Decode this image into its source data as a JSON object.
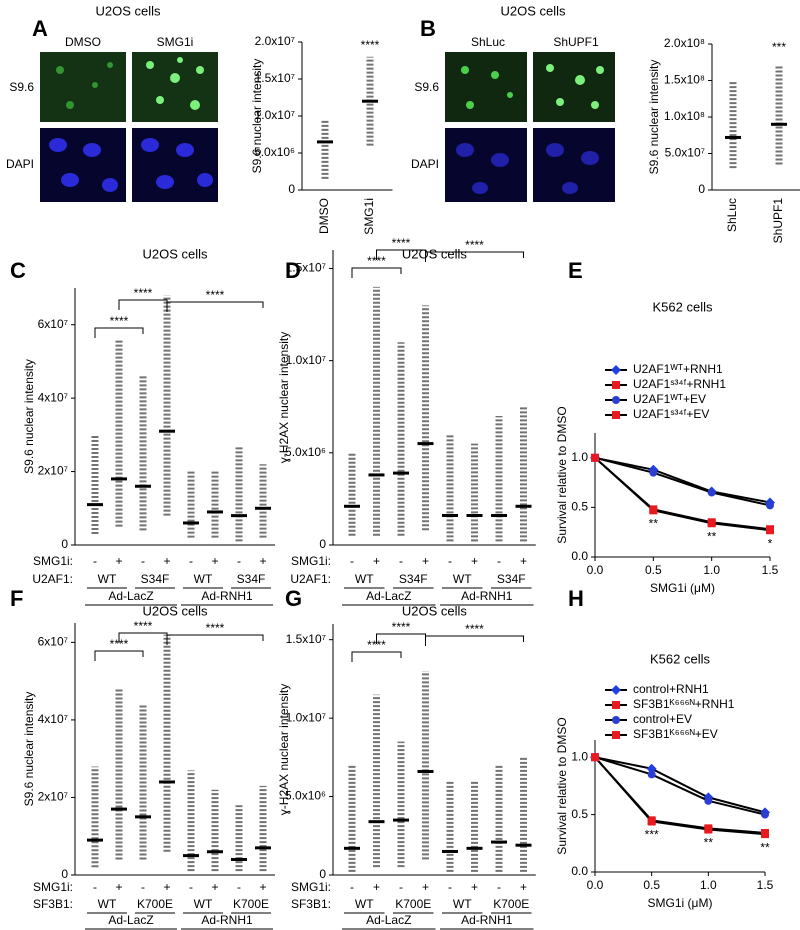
{
  "figure": {
    "panels": [
      {
        "letter": "A",
        "title": "U2OS cells",
        "conditions": [
          "DMSO",
          "SMG1i"
        ],
        "stains": [
          "S9.6",
          "DAPI"
        ]
      },
      {
        "letter": "B",
        "title": "U2OS cells",
        "conditions": [
          "ShLuc",
          "ShUPF1"
        ],
        "stains": [
          "S9.6",
          "DAPI"
        ]
      }
    ]
  },
  "chart_data": [
    {
      "type": "dot_plot",
      "ylabel": "S9.6 nuclear intensity",
      "ylim": [
        0,
        20000000
      ],
      "yticks": [
        0,
        {
          "value": 5000000,
          "label": "5.0x10⁶"
        },
        {
          "value": 10000000,
          "label": "1.0x10⁷"
        },
        {
          "value": 15000000,
          "label": "1.5x10⁷"
        },
        {
          "value": 20000000,
          "label": "2.0x10⁷"
        }
      ],
      "categories": [
        "DMSO",
        "SMG1i"
      ],
      "means": [
        6500000,
        12000000
      ],
      "mins": [
        1500000,
        6000000
      ],
      "maxs": [
        9500000,
        18000000
      ],
      "mean_color": "#e8191f",
      "significance": [
        "****"
      ]
    },
    {
      "type": "dot_plot",
      "ylabel": "S9.6 nuclear intensity",
      "ylim": [
        0,
        200000000
      ],
      "yticks": [
        0,
        {
          "value": 50000000,
          "label": "5.0x10⁷"
        },
        {
          "value": 100000000,
          "label": "1.0x10⁸"
        },
        {
          "value": 150000000,
          "label": "1.5x10⁸"
        },
        {
          "value": 200000000,
          "label": "2.0x10⁸"
        }
      ],
      "categories": [
        "ShLuc",
        "ShUPF1"
      ],
      "means": [
        72000000,
        90000000
      ],
      "mins": [
        30000000,
        35000000
      ],
      "maxs": [
        150000000,
        170000000
      ],
      "mean_color": "#e8191f",
      "significance": [
        "***"
      ]
    },
    {
      "type": "dot_plot",
      "panel": "C",
      "title": "U2OS cells",
      "ylabel": "S9.6 nuclear  intensity",
      "ylim": [
        0,
        70000000
      ],
      "yticks": [
        0,
        {
          "value": 20000000,
          "label": "2x10⁷"
        },
        {
          "value": 40000000,
          "label": "4x10⁷"
        },
        {
          "value": 60000000,
          "label": "6x10⁷"
        }
      ],
      "row_label": "SMG1i:",
      "categories": [
        "-",
        "+",
        "-",
        "+",
        "-",
        "+",
        "-",
        "+"
      ],
      "genotype_label": "U2AF1:",
      "genotypes": [
        "WT",
        "S34F",
        "WT",
        "S34F"
      ],
      "treatments": [
        "Ad-LacZ",
        "Ad-RNH1"
      ],
      "means": [
        11000000,
        18000000,
        16000000,
        31000000,
        6000000,
        9000000,
        8000000,
        10000000
      ],
      "mins": [
        3000000,
        5000000,
        4000000,
        8000000,
        2000000,
        2000000,
        1000000,
        2000000
      ],
      "maxs": [
        30000000,
        56000000,
        46000000,
        68000000,
        20000000,
        20000000,
        27000000,
        22000000
      ],
      "mean_color": "#e8191f",
      "significance": [
        "****",
        "****",
        "****"
      ]
    },
    {
      "type": "dot_plot",
      "panel": "D",
      "title": "U2OS cells",
      "ylabel": "ɣ-H2AX nuclear intensity",
      "ylim": [
        0,
        16000000
      ],
      "yticks": [
        0,
        {
          "value": 5000000,
          "label": "5.0x10⁶"
        },
        {
          "value": 10000000,
          "label": "1.0x10⁷"
        },
        {
          "value": 15000000,
          "label": "1.5x10⁷"
        }
      ],
      "row_label": "SMG1i:",
      "categories": [
        "-",
        "+",
        "-",
        "+",
        "-",
        "+",
        "-",
        "+"
      ],
      "genotype_label": "U2AF1:",
      "genotypes": [
        "WT",
        "S34F",
        "WT",
        "S34F"
      ],
      "treatments": [
        "Ad-LacZ",
        "Ad-RNH1"
      ],
      "means": [
        2100000,
        3800000,
        3900000,
        5500000,
        1600000,
        1600000,
        1600000,
        2100000
      ],
      "mins": [
        500000,
        500000,
        500000,
        800000,
        200000,
        200000,
        200000,
        200000
      ],
      "maxs": [
        5000000,
        14000000,
        11000000,
        13000000,
        6000000,
        5500000,
        7000000,
        7500000
      ],
      "mean_color": "#e8191f",
      "significance": [
        "****",
        "****",
        "****"
      ]
    },
    {
      "type": "line",
      "panel": "E",
      "title": "K562 cells",
      "ylabel": "Survival relative to DMSO",
      "xlabel": "SMG1i (μM)",
      "x": [
        0,
        0.5,
        1,
        1.5
      ],
      "xlim": [
        0,
        1.5
      ],
      "ylim": [
        0,
        1.25
      ],
      "xticks": [
        {
          "value": 0,
          "label": "0.0"
        },
        {
          "value": 0.5,
          "label": "0.5"
        },
        {
          "value": 1,
          "label": "1.0"
        },
        {
          "value": 1.5,
          "label": "1.5"
        }
      ],
      "yticks": [
        {
          "value": 0,
          "label": "0.0"
        },
        {
          "value": 0.5,
          "label": "0.5"
        },
        {
          "value": 1,
          "label": "1.0"
        }
      ],
      "series": [
        {
          "name": "U2AF1ᵂᵀ+RNH1",
          "color": "#1f3fe0",
          "marker": "diamond",
          "values": [
            1,
            0.88,
            0.66,
            0.55
          ]
        },
        {
          "name": "U2AF1ˢ³⁴ᶠ+RNH1",
          "color": "#e8191f",
          "marker": "square",
          "values": [
            1,
            0.48,
            0.35,
            0.28
          ]
        },
        {
          "name": "U2AF1ᵂᵀ+EV",
          "color": "#2a3fd0",
          "marker": "circle",
          "values": [
            1,
            0.85,
            0.65,
            0.52
          ]
        },
        {
          "name": "U2AF1ˢ³⁴ᶠ+EV",
          "color": "#e8191f",
          "marker": "square",
          "values": [
            1,
            0.47,
            0.34,
            0.27
          ]
        }
      ],
      "annotations": [
        "**",
        "**",
        "*"
      ],
      "legend": "top"
    },
    {
      "type": "dot_plot",
      "panel": "F",
      "title": "U2OS cells",
      "ylabel": "S9.6 nuclear intensity",
      "ylim": [
        0,
        65000000
      ],
      "yticks": [
        0,
        {
          "value": 20000000,
          "label": "2x10⁷"
        },
        {
          "value": 40000000,
          "label": "4x10⁷"
        },
        {
          "value": 60000000,
          "label": "6x10⁷"
        }
      ],
      "row_label": "SMG1i:",
      "categories": [
        "-",
        "+",
        "-",
        "+",
        "-",
        "+",
        "-",
        "+"
      ],
      "genotype_label": "SF3B1:",
      "genotypes": [
        "WT",
        "K700E",
        "WT",
        "K700E"
      ],
      "treatments": [
        "Ad-LacZ",
        "Ad-RNH1"
      ],
      "means": [
        9000000,
        17000000,
        15000000,
        24000000,
        5000000,
        6000000,
        4000000,
        7000000
      ],
      "mins": [
        2000000,
        4000000,
        4000000,
        6000000,
        1000000,
        1000000,
        1000000,
        1000000
      ],
      "maxs": [
        28000000,
        48000000,
        44000000,
        62000000,
        27000000,
        22000000,
        18000000,
        23000000
      ],
      "mean_color": "#e8191f",
      "significance": [
        "****",
        "****",
        "****"
      ]
    },
    {
      "type": "dot_plot",
      "panel": "G",
      "title": "U2OS cells",
      "ylabel": "ɣ-H2AX nuclear intensity",
      "ylim": [
        0,
        16000000
      ],
      "yticks": [
        0,
        {
          "value": 5000000,
          "label": "5.0x10⁶"
        },
        {
          "value": 10000000,
          "label": "1.0x10⁷"
        },
        {
          "value": 15000000,
          "label": "1.5x10⁷"
        }
      ],
      "row_label": "SMG1i:",
      "categories": [
        "-",
        "+",
        "-",
        "+",
        "-",
        "+",
        "-",
        "+"
      ],
      "genotype_label": "SF3B1:",
      "genotypes": [
        "WT",
        "K700E",
        "WT",
        "K700E"
      ],
      "treatments": [
        "Ad-LacZ",
        "Ad-RNH1"
      ],
      "means": [
        1700000,
        3400000,
        3500000,
        6600000,
        1500000,
        1700000,
        2100000,
        1900000
      ],
      "mins": [
        200000,
        500000,
        500000,
        1000000,
        200000,
        200000,
        200000,
        200000
      ],
      "maxs": [
        7000000,
        11500000,
        8500000,
        13000000,
        6000000,
        6000000,
        7000000,
        7500000
      ],
      "mean_color": "#e8191f",
      "significance": [
        "****",
        "****",
        "****"
      ]
    },
    {
      "type": "line",
      "panel": "H",
      "title": "K562 cells",
      "ylabel": "Survival relative to DMSO",
      "xlabel": "SMG1i (μM)",
      "x": [
        0,
        0.5,
        1,
        1.5
      ],
      "xlim": [
        0,
        1.5
      ],
      "ylim": [
        0,
        1.15
      ],
      "xticks": [
        {
          "value": 0,
          "label": "0.0"
        },
        {
          "value": 0.5,
          "label": "0.5"
        },
        {
          "value": 1,
          "label": "1.0"
        },
        {
          "value": 1.5,
          "label": "1.5"
        }
      ],
      "yticks": [
        {
          "value": 0,
          "label": "0.0"
        },
        {
          "value": 0.5,
          "label": "0.5"
        },
        {
          "value": 1,
          "label": "1.0"
        }
      ],
      "series": [
        {
          "name": "control+RNH1",
          "color": "#1f3fe0",
          "marker": "diamond",
          "values": [
            1,
            0.9,
            0.65,
            0.52
          ]
        },
        {
          "name": "SF3B1ᴷ⁶⁶⁶ᴺ+RNH1",
          "color": "#e8191f",
          "marker": "square",
          "values": [
            1,
            0.45,
            0.38,
            0.34
          ]
        },
        {
          "name": "control+EV",
          "color": "#2a3fd0",
          "marker": "circle",
          "values": [
            1,
            0.85,
            0.62,
            0.5
          ]
        },
        {
          "name": "SF3B1ᴷ⁶⁶⁶ᴺ+EV",
          "color": "#e8191f",
          "marker": "square",
          "values": [
            1,
            0.44,
            0.37,
            0.33
          ]
        }
      ],
      "annotations": [
        "***",
        "**",
        "**"
      ],
      "legend": "top"
    }
  ]
}
